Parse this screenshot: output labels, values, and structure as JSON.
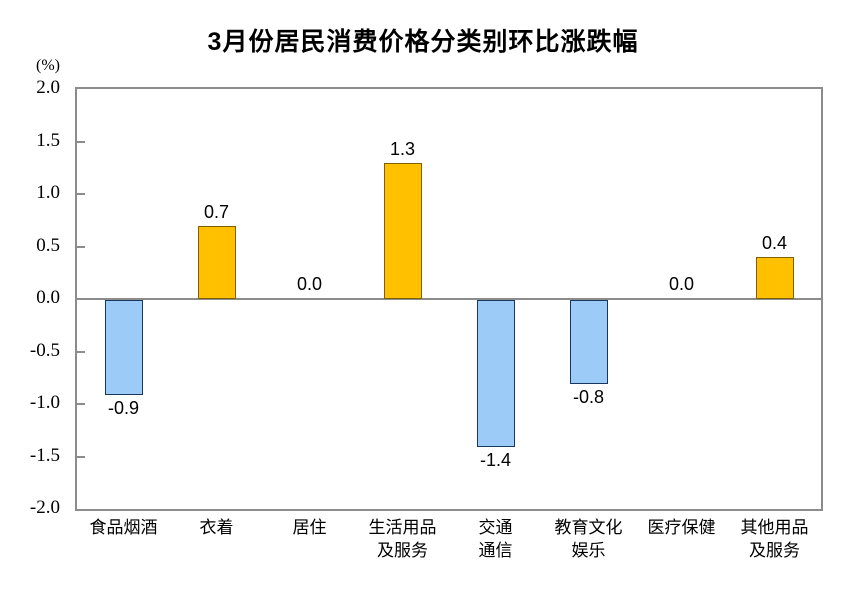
{
  "title": "3月份居民消费价格分类别环比涨跌幅",
  "y_axis_unit": "(%)",
  "chart_data": {
    "type": "bar",
    "title": "3月份居民消费价格分类别环比涨跌幅",
    "ylabel": "(%)",
    "xlabel": "",
    "categories": [
      "食品烟酒",
      "衣着",
      "居住",
      "生活用品\n及服务",
      "交通\n通信",
      "教育文化\n娱乐",
      "医疗保健",
      "其他用品\n及服务"
    ],
    "values": [
      -0.9,
      0.7,
      0.0,
      1.3,
      -1.4,
      -0.8,
      0.0,
      0.4
    ],
    "value_labels": [
      "-0.9",
      "0.7",
      "0.0",
      "1.3",
      "-1.4",
      "-0.8",
      "0.0",
      "0.4"
    ],
    "ylim": [
      -2.0,
      2.0
    ],
    "ytick_step": 0.5,
    "ytick_labels": [
      "2.0",
      "1.5",
      "1.0",
      "0.5",
      "0.0",
      "-0.5",
      "-1.0",
      "-1.5",
      "-2.0"
    ],
    "grid": false,
    "legend": "none",
    "colors": {
      "positive_fill": "#FFC000",
      "positive_border": "#7F6000",
      "negative_fill": "#9CCBF7",
      "negative_border": "#17375E",
      "axis_line": "#8C8C8C",
      "text": "#000000",
      "background": "#FFFFFF"
    }
  }
}
